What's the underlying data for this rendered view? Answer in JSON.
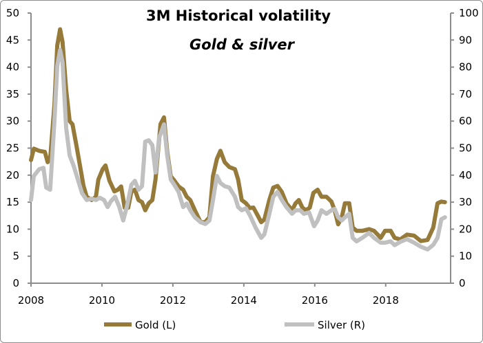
{
  "chart_data": {
    "type": "line",
    "title": "3M Historical volatility",
    "subtitle": "Gold & silver",
    "xlim": [
      2008,
      2019.83
    ],
    "x_ticks": [
      "2008",
      "2010",
      "2012",
      "2014",
      "2016",
      "2018"
    ],
    "y_left": {
      "lim": [
        0,
        50
      ],
      "ticks": [
        "0",
        "5",
        "10",
        "15",
        "20",
        "25",
        "30",
        "35",
        "40",
        "45",
        "50"
      ]
    },
    "y_right": {
      "lim": [
        0,
        100
      ],
      "ticks": [
        "0",
        "10",
        "20",
        "30",
        "40",
        "50",
        "60",
        "70",
        "80",
        "90",
        "100"
      ]
    },
    "grid": false,
    "legend_position": "bottom",
    "series": [
      {
        "name": "Gold (L)",
        "axis": "left",
        "color": "#957a3a",
        "points": [
          [
            2008,
            22.8
          ],
          [
            2008.08,
            24.9
          ],
          [
            2008.23,
            24.5
          ],
          [
            2008.39,
            24.3
          ],
          [
            2008.47,
            22.4
          ],
          [
            2008.54,
            23
          ],
          [
            2008.66,
            33
          ],
          [
            2008.74,
            44
          ],
          [
            2008.82,
            47
          ],
          [
            2008.89,
            44.6
          ],
          [
            2008.99,
            35.8
          ],
          [
            2009.09,
            30
          ],
          [
            2009.17,
            29.4
          ],
          [
            2009.28,
            25.5
          ],
          [
            2009.38,
            21.8
          ],
          [
            2009.48,
            18
          ],
          [
            2009.57,
            16
          ],
          [
            2009.71,
            15.4
          ],
          [
            2009.83,
            16
          ],
          [
            2009.9,
            19.2
          ],
          [
            2010.02,
            21.1
          ],
          [
            2010.1,
            21.8
          ],
          [
            2010.21,
            19
          ],
          [
            2010.35,
            17
          ],
          [
            2010.45,
            17.3
          ],
          [
            2010.54,
            17.9
          ],
          [
            2010.64,
            14
          ],
          [
            2010.74,
            14
          ],
          [
            2010.83,
            17
          ],
          [
            2010.93,
            17.3
          ],
          [
            2011.03,
            15.4
          ],
          [
            2011.13,
            15
          ],
          [
            2011.22,
            13.5
          ],
          [
            2011.32,
            14.8
          ],
          [
            2011.42,
            15.4
          ],
          [
            2011.51,
            19.2
          ],
          [
            2011.65,
            29.4
          ],
          [
            2011.75,
            30.7
          ],
          [
            2011.84,
            24.3
          ],
          [
            2011.94,
            19.8
          ],
          [
            2012.04,
            19
          ],
          [
            2012.16,
            17.9
          ],
          [
            2012.29,
            17.3
          ],
          [
            2012.39,
            16
          ],
          [
            2012.49,
            15.4
          ],
          [
            2012.62,
            13.5
          ],
          [
            2012.78,
            11.3
          ],
          [
            2012.91,
            11.3
          ],
          [
            2013.03,
            12.2
          ],
          [
            2013.13,
            19.8
          ],
          [
            2013.24,
            23
          ],
          [
            2013.34,
            24.5
          ],
          [
            2013.46,
            22.4
          ],
          [
            2013.59,
            21.5
          ],
          [
            2013.75,
            21.1
          ],
          [
            2013.84,
            19.2
          ],
          [
            2013.94,
            15.4
          ],
          [
            2014.06,
            14.8
          ],
          [
            2014.17,
            13.9
          ],
          [
            2014.27,
            14
          ],
          [
            2014.37,
            12.8
          ],
          [
            2014.49,
            11.3
          ],
          [
            2014.58,
            11.8
          ],
          [
            2014.72,
            15.4
          ],
          [
            2014.83,
            17.7
          ],
          [
            2014.95,
            18
          ],
          [
            2015.07,
            16.9
          ],
          [
            2015.2,
            14.8
          ],
          [
            2015.36,
            13.5
          ],
          [
            2015.46,
            14.8
          ],
          [
            2015.55,
            15.4
          ],
          [
            2015.65,
            14
          ],
          [
            2015.75,
            13.5
          ],
          [
            2015.86,
            14
          ],
          [
            2015.96,
            16.7
          ],
          [
            2016.08,
            17.3
          ],
          [
            2016.19,
            16
          ],
          [
            2016.33,
            16
          ],
          [
            2016.47,
            15.1
          ],
          [
            2016.56,
            13.5
          ],
          [
            2016.66,
            10.9
          ],
          [
            2016.76,
            12.2
          ],
          [
            2016.85,
            14.8
          ],
          [
            2016.97,
            14.8
          ],
          [
            2017.07,
            10.3
          ],
          [
            2017.18,
            9.7
          ],
          [
            2017.34,
            9.7
          ],
          [
            2017.53,
            10
          ],
          [
            2017.67,
            9.7
          ],
          [
            2017.86,
            8.4
          ],
          [
            2017.98,
            9.7
          ],
          [
            2018.14,
            9.7
          ],
          [
            2018.25,
            8.4
          ],
          [
            2018.41,
            8.1
          ],
          [
            2018.6,
            9
          ],
          [
            2018.8,
            8.8
          ],
          [
            2018.99,
            7.8
          ],
          [
            2019.18,
            8
          ],
          [
            2019.34,
            10.3
          ],
          [
            2019.46,
            14.8
          ],
          [
            2019.57,
            15.1
          ],
          [
            2019.67,
            15
          ]
        ]
      },
      {
        "name": "Silver (R)",
        "axis": "right",
        "color": "#c0c0c0",
        "points": [
          [
            2008,
            30.8
          ],
          [
            2008.08,
            39.7
          ],
          [
            2008.23,
            42.2
          ],
          [
            2008.35,
            42.7
          ],
          [
            2008.43,
            35.4
          ],
          [
            2008.54,
            34.6
          ],
          [
            2008.66,
            60
          ],
          [
            2008.74,
            80.4
          ],
          [
            2008.82,
            86.3
          ],
          [
            2008.89,
            81.7
          ],
          [
            2008.99,
            57.5
          ],
          [
            2009.09,
            47.3
          ],
          [
            2009.2,
            43.5
          ],
          [
            2009.32,
            38.4
          ],
          [
            2009.44,
            33.3
          ],
          [
            2009.57,
            30.8
          ],
          [
            2009.71,
            31.3
          ],
          [
            2009.83,
            30.8
          ],
          [
            2009.94,
            31.6
          ],
          [
            2010.06,
            30.8
          ],
          [
            2010.16,
            28.2
          ],
          [
            2010.25,
            30.3
          ],
          [
            2010.37,
            32
          ],
          [
            2010.49,
            28.2
          ],
          [
            2010.6,
            23.2
          ],
          [
            2010.7,
            28.2
          ],
          [
            2010.83,
            36.4
          ],
          [
            2010.93,
            37.9
          ],
          [
            2011.03,
            34.6
          ],
          [
            2011.13,
            35.9
          ],
          [
            2011.22,
            52.4
          ],
          [
            2011.32,
            52.9
          ],
          [
            2011.42,
            51.1
          ],
          [
            2011.51,
            41
          ],
          [
            2011.61,
            53.7
          ],
          [
            2011.75,
            58.8
          ],
          [
            2011.84,
            47.3
          ],
          [
            2011.94,
            38.4
          ],
          [
            2012.04,
            36.4
          ],
          [
            2012.16,
            33.8
          ],
          [
            2012.29,
            28.2
          ],
          [
            2012.39,
            29.5
          ],
          [
            2012.49,
            27
          ],
          [
            2012.62,
            24.4
          ],
          [
            2012.78,
            22.6
          ],
          [
            2012.91,
            21.9
          ],
          [
            2013.03,
            23.2
          ],
          [
            2013.13,
            30.8
          ],
          [
            2013.24,
            39.7
          ],
          [
            2013.34,
            37.1
          ],
          [
            2013.46,
            35.9
          ],
          [
            2013.59,
            35.4
          ],
          [
            2013.75,
            32
          ],
          [
            2013.84,
            28.2
          ],
          [
            2013.94,
            27
          ],
          [
            2014.06,
            27.7
          ],
          [
            2014.17,
            25.2
          ],
          [
            2014.33,
            20.6
          ],
          [
            2014.49,
            16.8
          ],
          [
            2014.58,
            18.1
          ],
          [
            2014.72,
            25.7
          ],
          [
            2014.83,
            32
          ],
          [
            2014.95,
            33.8
          ],
          [
            2015.07,
            30.8
          ],
          [
            2015.2,
            28.2
          ],
          [
            2015.36,
            25.7
          ],
          [
            2015.46,
            27
          ],
          [
            2015.59,
            27
          ],
          [
            2015.69,
            25.7
          ],
          [
            2015.84,
            26.2
          ],
          [
            2015.98,
            21.1
          ],
          [
            2016.08,
            23.2
          ],
          [
            2016.19,
            27
          ],
          [
            2016.33,
            25.7
          ],
          [
            2016.47,
            27
          ],
          [
            2016.56,
            27.5
          ],
          [
            2016.66,
            24.4
          ],
          [
            2016.76,
            23.2
          ],
          [
            2016.85,
            24.4
          ],
          [
            2016.97,
            25.7
          ],
          [
            2017.07,
            16.8
          ],
          [
            2017.18,
            15.5
          ],
          [
            2017.34,
            16.8
          ],
          [
            2017.53,
            18.6
          ],
          [
            2017.67,
            16.8
          ],
          [
            2017.86,
            15
          ],
          [
            2017.98,
            15
          ],
          [
            2018.14,
            15.5
          ],
          [
            2018.25,
            14.1
          ],
          [
            2018.41,
            15.3
          ],
          [
            2018.6,
            16.3
          ],
          [
            2018.8,
            15
          ],
          [
            2018.99,
            13.5
          ],
          [
            2019.18,
            12.5
          ],
          [
            2019.34,
            14.2
          ],
          [
            2019.46,
            16.8
          ],
          [
            2019.57,
            23.7
          ],
          [
            2019.67,
            24.4
          ]
        ]
      }
    ]
  }
}
